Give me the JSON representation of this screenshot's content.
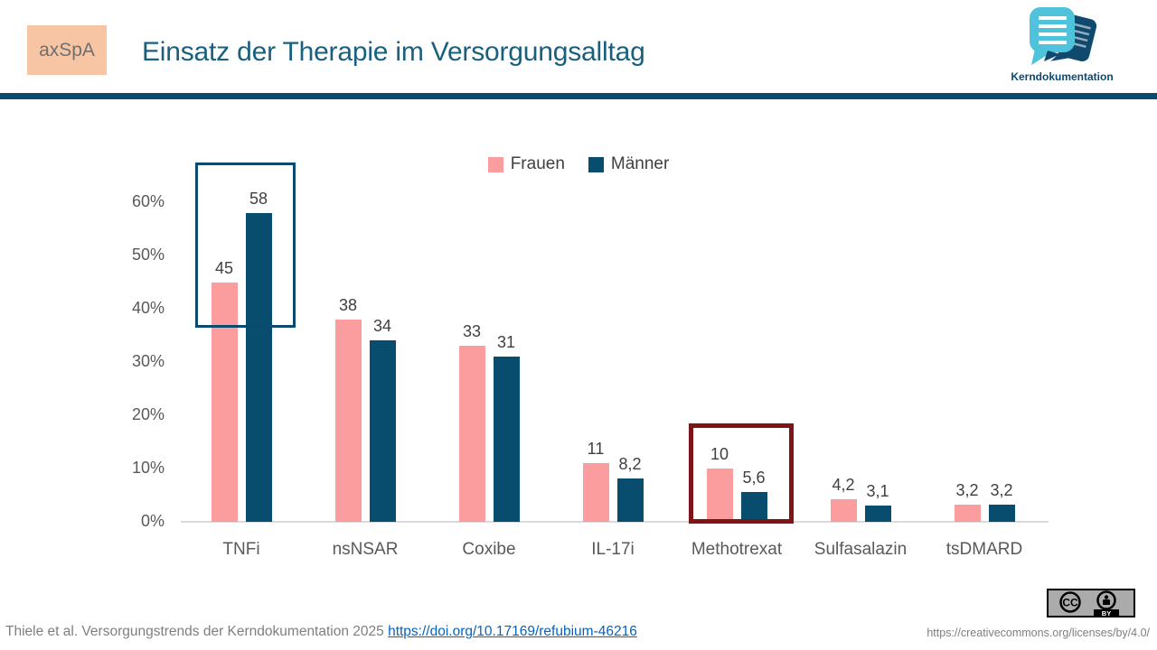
{
  "header": {
    "badge": "axSpA",
    "title": "Einsatz der Therapie im Versorgungsalltag",
    "logo_text": "Kerndokumentation"
  },
  "colors": {
    "accent_navy": "#0b4a6f",
    "bar_pink": "#fb9c9e",
    "bar_navy": "#084d6e",
    "highlight_blue_box": "#0b4a6f",
    "highlight_red_box": "#7e1416",
    "badge_peach": "#f7c5a3",
    "logo_teal": "#4ec3db",
    "link_blue": "#0563c1",
    "axis_gray": "#d9d9d9",
    "text_gray": "#595959"
  },
  "chart_data": {
    "type": "bar",
    "categories": [
      "TNFi",
      "nsNSAR",
      "Coxibe",
      "IL-17i",
      "Methotrexat",
      "Sulfasalazin",
      "tsDMARD"
    ],
    "series": [
      {
        "name": "Frauen",
        "color": "#fb9c9e",
        "values": [
          45,
          38,
          33,
          11,
          10,
          4.2,
          3.2
        ],
        "labels": [
          "45",
          "38",
          "33",
          "11",
          "10",
          "4,2",
          "3,2"
        ]
      },
      {
        "name": "Männer",
        "color": "#084d6e",
        "values": [
          58,
          34,
          31,
          8.2,
          5.6,
          3.1,
          3.2
        ],
        "labels": [
          "58",
          "34",
          "31",
          "8,2",
          "5,6",
          "3,1",
          "3,2"
        ]
      }
    ],
    "title": "Einsatz der Therapie im Versorgungsalltag",
    "xlabel": "",
    "ylabel": "",
    "ylim": [
      0,
      60
    ],
    "y_ticks": [
      "0%",
      "10%",
      "20%",
      "30%",
      "40%",
      "50%",
      "60%"
    ],
    "grid": false,
    "legend_position": "top-center",
    "annotations": [
      {
        "type": "box",
        "name": "tnfi-highlight-box",
        "category": "TNFi",
        "color": "#0b4a6f"
      },
      {
        "type": "box",
        "name": "methotrexat-highlight-box",
        "category": "Methotrexat",
        "color": "#7e1416"
      }
    ]
  },
  "footer": {
    "citation": "Thiele et al. Versorgungstrends der Kerndokumentation 2025",
    "doi_link": "https://doi.org/10.17169/refubium-46216",
    "cc_badge": "CC BY",
    "license_url": "https://creativecommons.org/licenses/by/4.0/"
  }
}
